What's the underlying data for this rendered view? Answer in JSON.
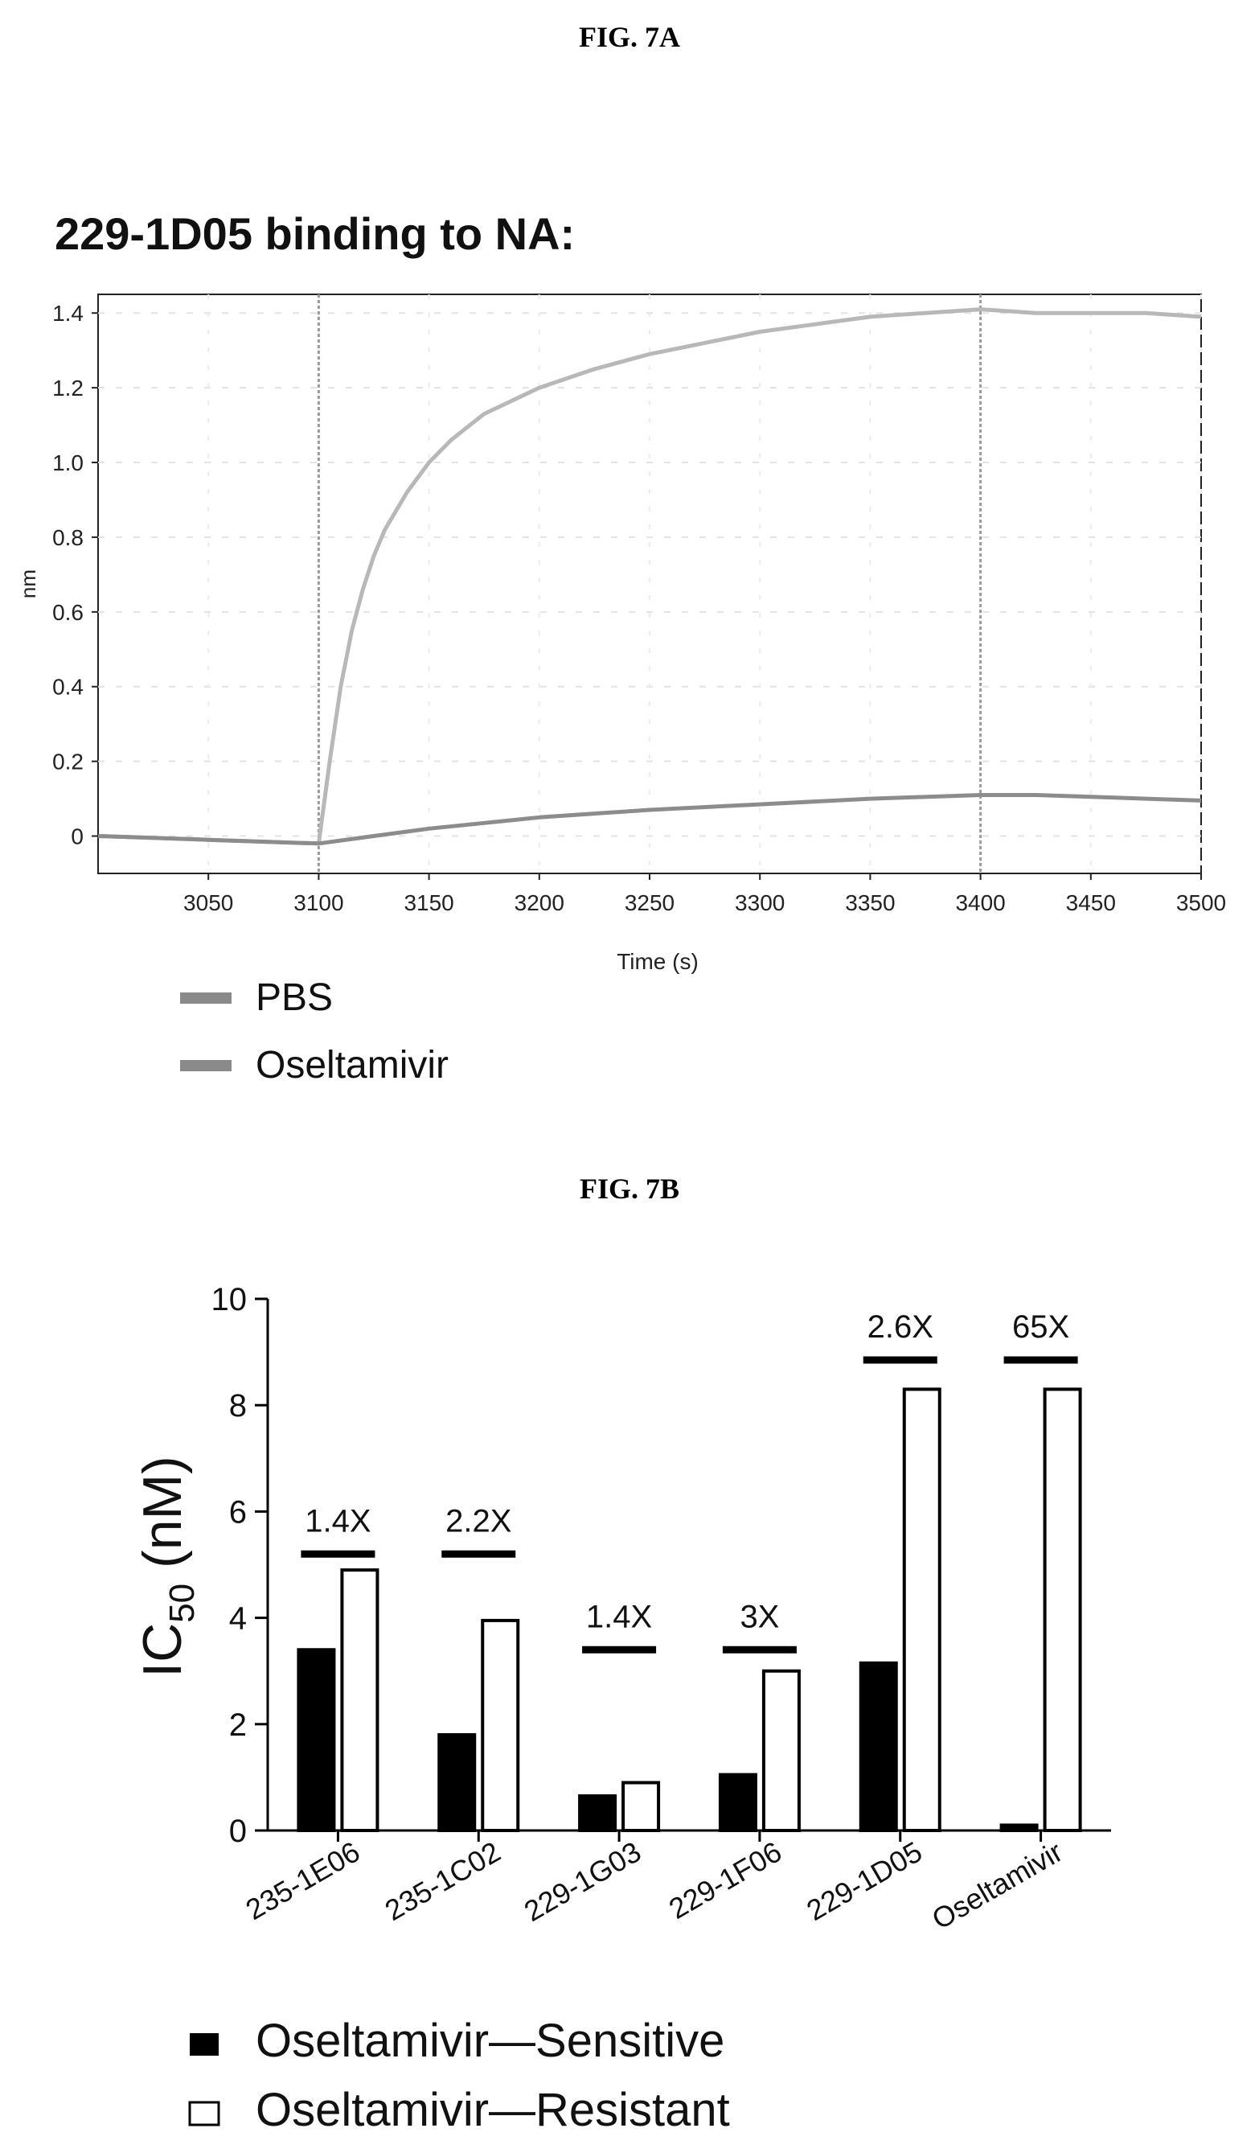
{
  "figures": [
    {
      "label": "FIG. 7A"
    },
    {
      "label": "FIG. 7B"
    }
  ],
  "chart_data": [
    {
      "type": "line",
      "title": "229-1D05 binding to NA:",
      "xlabel": "Time (s)",
      "ylabel": "nm",
      "xlim": [
        3000,
        3500
      ],
      "ylim": [
        -0.1,
        1.45
      ],
      "x_ticks": [
        3050,
        3100,
        3150,
        3200,
        3250,
        3300,
        3350,
        3400,
        3450,
        3500
      ],
      "x_tick_labels": [
        "3050",
        "3100",
        "3150",
        "3200",
        "3250",
        "3300",
        "3350",
        "3400",
        "3450",
        "3500"
      ],
      "y_ticks": [
        0,
        0.2,
        0.4,
        0.6,
        0.8,
        1.0,
        1.2,
        1.4
      ],
      "y_tick_labels": [
        "0",
        "0.2",
        "0.4",
        "0.6",
        "0.8",
        "1.0",
        "1.2",
        "1.4"
      ],
      "vlines": [
        3100,
        3400
      ],
      "legend": [
        "PBS",
        "Oseltamivir"
      ],
      "legend_position": "below",
      "series": [
        {
          "name": "PBS",
          "color": "#b8b8b8",
          "x": [
            3000,
            3050,
            3100,
            3105,
            3110,
            3115,
            3120,
            3125,
            3130,
            3140,
            3150,
            3160,
            3175,
            3200,
            3225,
            3250,
            3275,
            3300,
            3325,
            3350,
            3375,
            3400,
            3425,
            3450,
            3475,
            3500
          ],
          "y": [
            0.0,
            -0.01,
            -0.02,
            0.2,
            0.4,
            0.55,
            0.66,
            0.75,
            0.82,
            0.92,
            1.0,
            1.06,
            1.13,
            1.2,
            1.25,
            1.29,
            1.32,
            1.35,
            1.37,
            1.39,
            1.4,
            1.41,
            1.4,
            1.4,
            1.4,
            1.39
          ]
        },
        {
          "name": "Oseltamivir",
          "color": "#8c8c8c",
          "x": [
            3000,
            3050,
            3100,
            3125,
            3150,
            3175,
            3200,
            3250,
            3300,
            3350,
            3400,
            3425,
            3450,
            3475,
            3500
          ],
          "y": [
            0.0,
            -0.01,
            -0.02,
            0.0,
            0.02,
            0.035,
            0.05,
            0.07,
            0.085,
            0.1,
            0.11,
            0.11,
            0.105,
            0.1,
            0.095
          ]
        }
      ]
    },
    {
      "type": "bar",
      "title": "",
      "xlabel": "",
      "ylabel": "IC",
      "ylabel_subscript": "50",
      "ylabel_unit": " (nM)",
      "ylim": [
        0,
        10
      ],
      "y_ticks": [
        0,
        2,
        4,
        6,
        8,
        10
      ],
      "y_tick_labels": [
        "0",
        "2",
        "4",
        "6",
        "8",
        "10"
      ],
      "categories": [
        "235-1E06",
        "235-1C02",
        "229-1G03",
        "229-1F06",
        "229-1D05",
        "Oseltamivir"
      ],
      "series": [
        {
          "name": "Oseltamivir—Sensitive",
          "color": "#000000",
          "values": [
            3.4,
            1.8,
            0.65,
            1.05,
            3.15,
            0.1
          ]
        },
        {
          "name": "Oseltamivir—Resistant",
          "color": "#ffffff",
          "values": [
            4.9,
            3.95,
            0.9,
            3.0,
            8.3,
            8.3
          ]
        }
      ],
      "annotations": [
        {
          "category": "235-1E06",
          "text": "1.4X",
          "bar_level": 5.2
        },
        {
          "category": "235-1C02",
          "text": "2.2X",
          "bar_level": 5.2
        },
        {
          "category": "229-1G03",
          "text": "1.4X",
          "bar_level": 3.4
        },
        {
          "category": "229-1F06",
          "text": "3X",
          "bar_level": 3.4
        },
        {
          "category": "229-1D05",
          "text": "2.6X",
          "bar_level": 8.85
        },
        {
          "category": "Oseltamivir",
          "text": "65X",
          "bar_level": 8.85
        }
      ],
      "legend": [
        "Oseltamivir—Sensitive",
        "Oseltamivir—Resistant"
      ],
      "legend_position": "below"
    }
  ]
}
